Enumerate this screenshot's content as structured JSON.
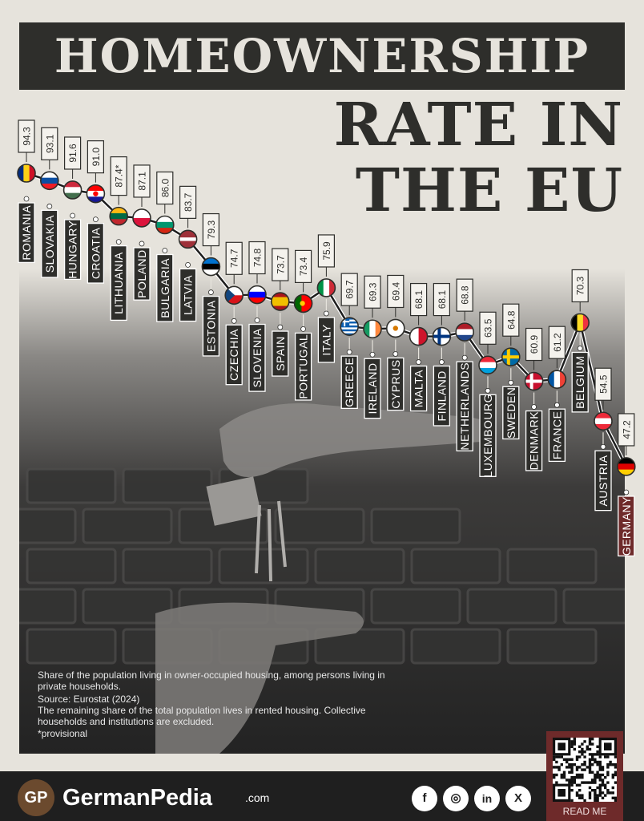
{
  "header": {
    "title_line1": "HOMEOWNERSHIP",
    "title_line2": "RATE IN",
    "title_line3": "THE EU"
  },
  "chart_data": {
    "type": "line",
    "categories": [
      "ROMANIA",
      "SLOVAKIA",
      "HUNGARY",
      "CROATIA",
      "LITHUANIA",
      "POLAND",
      "BULGARIA",
      "LATVIA",
      "ESTONIA",
      "CZECHIA",
      "SLOVENIA",
      "SPAIN",
      "PORTUGAL",
      "ITALY",
      "GREECE",
      "IRELAND",
      "CYPRUS",
      "MALTA",
      "FINLAND",
      "NETHERLANDS",
      "LUXEMBOURG",
      "SWEDEN",
      "DENMARK",
      "FRANCE",
      "BELGIUM",
      "AUSTRIA",
      "GERMANY"
    ],
    "values": [
      94.3,
      93.1,
      91.6,
      91.0,
      87.4,
      87.1,
      86.0,
      83.7,
      79.3,
      74.7,
      74.8,
      73.7,
      73.4,
      75.9,
      69.7,
      69.3,
      69.4,
      68.1,
      68.1,
      68.8,
      63.5,
      64.8,
      60.9,
      61.2,
      70.3,
      54.5,
      47.2
    ],
    "value_labels": [
      "94.3",
      "93.1",
      "91.6",
      "91.0",
      "87.4*",
      "87.1",
      "86.0",
      "83.7",
      "79.3",
      "74.7",
      "74.8",
      "73.7",
      "73.4",
      "75.9",
      "69.7",
      "69.3",
      "69.4",
      "68.1",
      "68.1",
      "68.8",
      "63.5",
      "64.8",
      "60.9",
      "61.2",
      "70.3",
      "54.5",
      "47.2"
    ],
    "highlight": "GERMANY",
    "line_color": "#1e1e1e",
    "highlight_color": "#6e2a2a"
  },
  "notes": {
    "description": "Share of the population living in owner-occupied housing, among persons living in private households.",
    "source": "Source: Eurostat (2024)",
    "remark": "The remaining share of the total population lives in rented housing. Collective households and institutions are excluded.",
    "provisional": "*provisional"
  },
  "footer": {
    "logo_text": "GP",
    "brand": "GermanPedia",
    "brand_suffix": ".com",
    "social": {
      "facebook": "f",
      "instagram": "◎",
      "linkedin": "in",
      "x": "X"
    },
    "readme": "READ ME"
  }
}
